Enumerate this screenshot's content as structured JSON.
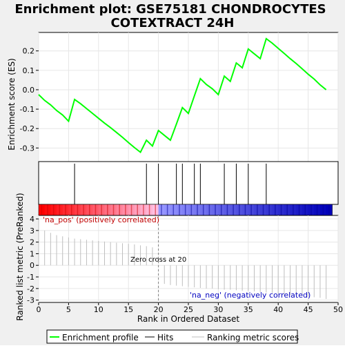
{
  "title_lines": [
    "Enrichment plot: GSE75181 CHONDROCYTES",
    "COTEXTRACT 24H"
  ],
  "colors": {
    "enrichment_line": "#00ff00",
    "hits": "#000000",
    "ranking": "#bebebe",
    "pos_label": "#c00000",
    "neg_label": "#0000c0",
    "background": "#f0f0f0"
  },
  "chart_data": {
    "type": "line",
    "xlabel": "Rank in Ordered Dataset",
    "xlim": [
      0,
      50
    ],
    "x_ticks": [
      0,
      5,
      10,
      15,
      20,
      25,
      30,
      35,
      40,
      45,
      50
    ],
    "top_panel": {
      "ylabel": "Enrichment score (ES)",
      "ylim": [
        -0.37,
        0.295
      ],
      "y_ticks": [
        -0.3,
        -0.2,
        -0.1,
        0.0,
        0.1,
        0.2
      ],
      "y_tick_labels": [
        "-0.3",
        "-0.2",
        "-0.1",
        "0.0",
        "0.1",
        "0.2"
      ],
      "series": [
        {
          "x": [
            0,
            1,
            2,
            3,
            4,
            5,
            6,
            7,
            8,
            9,
            10,
            11,
            12,
            13,
            14,
            15,
            16,
            17,
            18,
            19,
            20,
            21,
            22,
            23,
            24,
            25,
            26,
            27,
            28,
            29,
            30,
            31,
            32,
            33,
            34,
            35,
            36,
            37,
            38,
            39,
            40,
            41,
            42,
            43,
            44,
            45,
            46,
            47,
            48
          ],
          "y": [
            -0.025,
            -0.055,
            -0.078,
            -0.107,
            -0.13,
            -0.162,
            -0.05,
            -0.072,
            -0.097,
            -0.122,
            -0.147,
            -0.172,
            -0.195,
            -0.22,
            -0.245,
            -0.272,
            -0.298,
            -0.322,
            -0.26,
            -0.29,
            -0.21,
            -0.235,
            -0.26,
            -0.177,
            -0.092,
            -0.122,
            -0.032,
            0.057,
            0.027,
            0.005,
            -0.025,
            0.07,
            0.043,
            0.138,
            0.113,
            0.21,
            0.185,
            0.16,
            0.263,
            0.24,
            0.213,
            0.187,
            0.16,
            0.135,
            0.108,
            0.08,
            0.055,
            0.025,
            0.0
          ]
        }
      ]
    },
    "hits": [
      6,
      18,
      20,
      23,
      24,
      26,
      27,
      31,
      33,
      35,
      38
    ],
    "bottom_panel": {
      "ylabel": "Ranked list metric (PreRanked)",
      "ylim": [
        -3.2,
        4.3
      ],
      "y_ticks": [
        -3,
        -2,
        -1,
        0,
        1,
        2,
        3,
        4
      ],
      "y_tick_labels": [
        "-3",
        "-2",
        "-1",
        "0",
        "1",
        "2",
        "3",
        "4"
      ],
      "ranks": [
        0,
        1,
        2,
        3,
        4,
        5,
        6,
        7,
        8,
        9,
        10,
        11,
        12,
        13,
        14,
        15,
        16,
        17,
        18,
        19,
        20,
        21,
        22,
        23,
        24,
        25,
        26,
        27,
        28,
        29,
        30,
        31,
        32,
        33,
        34,
        35,
        36,
        37,
        38,
        39,
        40,
        41,
        42,
        43,
        44,
        45,
        46,
        47,
        48
      ],
      "values": [
        4.0,
        3.0,
        2.8,
        2.6,
        2.5,
        2.4,
        2.3,
        2.25,
        2.2,
        2.15,
        2.1,
        2.05,
        2.0,
        1.95,
        1.9,
        1.85,
        1.8,
        1.72,
        1.65,
        1.55,
        0.0,
        -1.6,
        -1.7,
        -1.75,
        -1.8,
        -1.85,
        -1.9,
        -1.95,
        -2.0,
        -2.0,
        -2.05,
        -2.1,
        -2.1,
        -2.15,
        -2.2,
        -2.2,
        -2.25,
        -2.3,
        -2.35,
        -2.4,
        -2.45,
        -2.5,
        -2.55,
        -2.6,
        -2.65,
        -2.7,
        -2.75,
        -2.8,
        -2.9
      ],
      "zero_cross_rank": 20,
      "zero_cross_label": "Zero cross at 20",
      "pos_label": "'na_pos' (positively correlated)",
      "neg_label": "'na_neg' (negatively correlated)"
    },
    "legend": {
      "placement": "bottom",
      "entries": [
        {
          "label": "Enrichment profile",
          "color": "#00ff00"
        },
        {
          "label": "Hits",
          "color": "#000000"
        },
        {
          "label": "Ranking metric scores",
          "color": "#bebebe"
        }
      ]
    }
  }
}
